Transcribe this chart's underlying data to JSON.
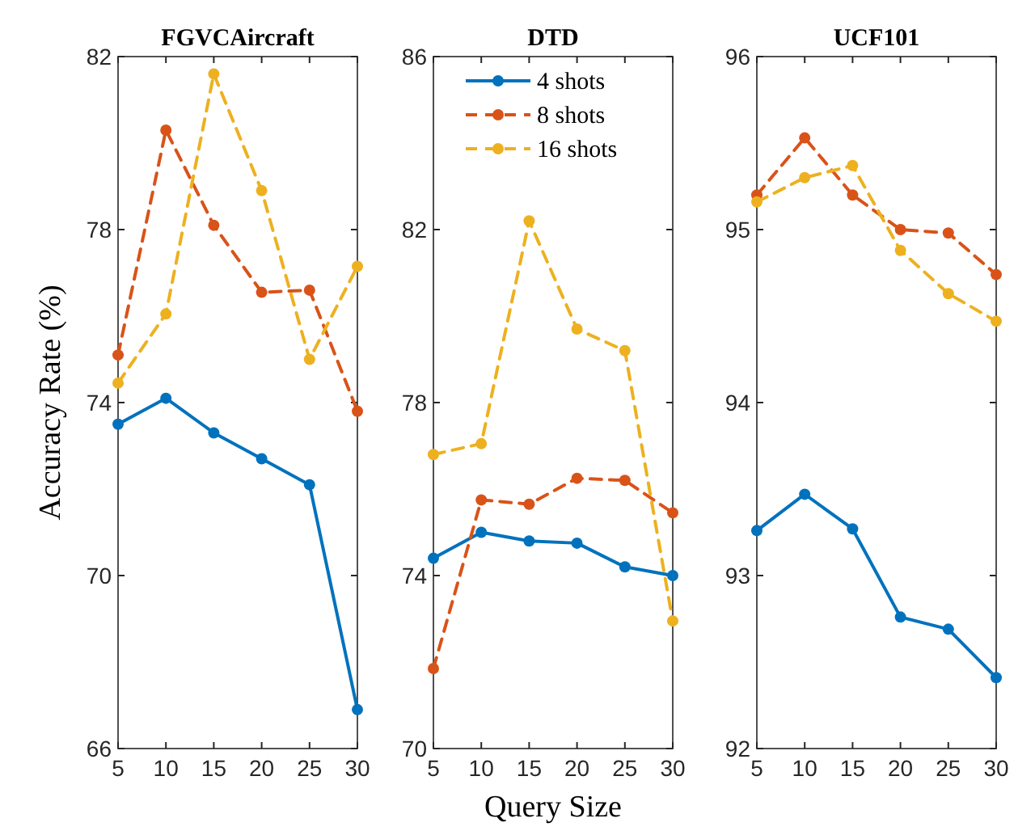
{
  "chart_data": [
    {
      "type": "line",
      "title": "FGVCAircraft",
      "ylabel": "Accuracy Rate (%)",
      "x": [
        5,
        10,
        15,
        20,
        25,
        30
      ],
      "xlim": [
        5,
        30
      ],
      "xticks": [
        5,
        10,
        15,
        20,
        25,
        30
      ],
      "ylim": [
        66,
        82
      ],
      "yticks": [
        66,
        70,
        74,
        78,
        82
      ],
      "marker": "circle",
      "grid": false,
      "legend": false,
      "series": [
        {
          "color": "#0072bd",
          "line_style": "solid",
          "values": [
            73.5,
            74.1,
            73.3,
            72.7,
            72.1,
            66.9
          ]
        },
        {
          "color": "#d95319",
          "line_style": "dashed",
          "values": [
            75.1,
            80.3,
            78.1,
            76.55,
            76.6,
            73.8
          ]
        },
        {
          "color": "#edb120",
          "line_style": "dashed",
          "values": [
            74.45,
            76.05,
            81.6,
            78.9,
            75.0,
            77.15
          ]
        }
      ]
    },
    {
      "type": "line",
      "title": "DTD",
      "xlabel": "Query Size",
      "x": [
        5,
        10,
        15,
        20,
        25,
        30
      ],
      "xlim": [
        5,
        30
      ],
      "xticks": [
        5,
        10,
        15,
        20,
        25,
        30
      ],
      "ylim": [
        70,
        86
      ],
      "yticks": [
        70,
        74,
        78,
        82,
        86
      ],
      "marker": "circle",
      "grid": false,
      "legend": "top",
      "series": [
        {
          "name": "4 shots",
          "color": "#0072bd",
          "line_style": "solid",
          "values": [
            74.4,
            75.0,
            74.8,
            74.75,
            74.2,
            74.0
          ]
        },
        {
          "name": "8 shots",
          "color": "#d95319",
          "line_style": "dashed",
          "values": [
            71.85,
            75.75,
            75.65,
            76.25,
            76.2,
            75.45
          ]
        },
        {
          "name": "16 shots",
          "color": "#edb120",
          "line_style": "dashed",
          "values": [
            76.8,
            77.05,
            82.2,
            79.7,
            79.2,
            72.95
          ]
        }
      ]
    },
    {
      "type": "line",
      "title": "UCF101",
      "x": [
        5,
        10,
        15,
        20,
        25,
        30
      ],
      "xlim": [
        5,
        30
      ],
      "xticks": [
        5,
        10,
        15,
        20,
        25,
        30
      ],
      "ylim": [
        92,
        96
      ],
      "yticks": [
        92,
        93,
        94,
        95,
        96
      ],
      "marker": "circle",
      "grid": false,
      "legend": false,
      "series": [
        {
          "color": "#0072bd",
          "line_style": "solid",
          "values": [
            93.26,
            93.47,
            93.27,
            92.76,
            92.69,
            92.41
          ]
        },
        {
          "color": "#d95319",
          "line_style": "dashed",
          "values": [
            95.2,
            95.53,
            95.2,
            95.0,
            94.98,
            94.74
          ]
        },
        {
          "color": "#edb120",
          "line_style": "dashed",
          "values": [
            95.16,
            95.3,
            95.37,
            94.88,
            94.63,
            94.47
          ]
        }
      ]
    }
  ]
}
